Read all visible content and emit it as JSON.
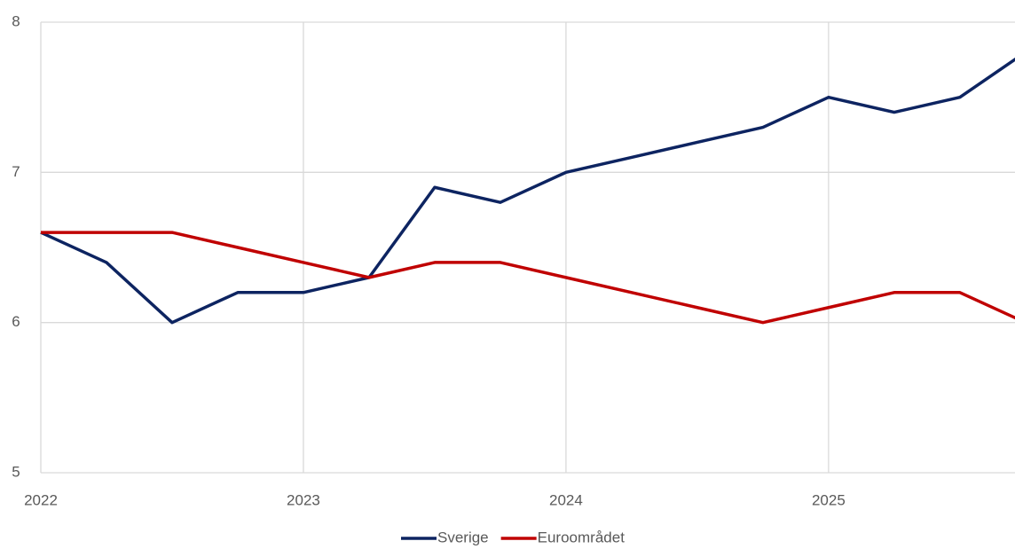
{
  "chart_data": {
    "type": "line",
    "x": [
      2022,
      2022.25,
      2022.5,
      2022.75,
      2023,
      2023.25,
      2023.5,
      2023.75,
      2024,
      2024.25,
      2024.5,
      2024.75,
      2025,
      2025.25,
      2025.5,
      2025.75
    ],
    "series": [
      {
        "name": "Sverige",
        "color": "#0d2461",
        "values": [
          6.6,
          6.4,
          6.0,
          6.2,
          6.2,
          6.3,
          6.9,
          6.8,
          7.0,
          7.1,
          7.2,
          7.3,
          7.5,
          7.4,
          7.5,
          7.8
        ]
      },
      {
        "name": "Euroområdet",
        "color": "#c00000",
        "values": [
          6.6,
          6.6,
          6.6,
          6.5,
          6.4,
          6.3,
          6.4,
          6.4,
          6.3,
          6.2,
          6.1,
          6.0,
          6.1,
          6.2,
          6.2,
          6.0
        ]
      }
    ],
    "xlim": [
      2022,
      2025.71
    ],
    "xticks": [
      2022,
      2023,
      2024,
      2025
    ],
    "ylim": [
      5,
      8
    ],
    "yticks": [
      5,
      6,
      7,
      8
    ],
    "grid": true,
    "legend": "bottom"
  }
}
